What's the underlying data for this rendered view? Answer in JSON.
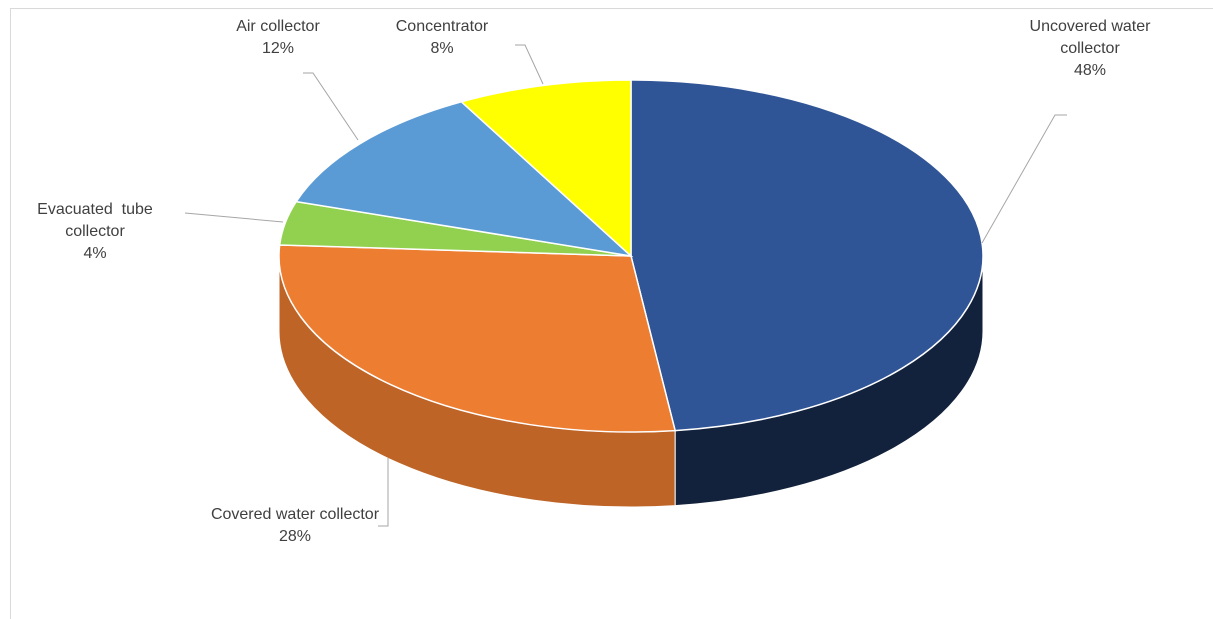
{
  "chart_data": {
    "type": "pie3d",
    "categories": [
      "Uncovered water collector",
      "Covered water collector",
      "Evacuated  tube collector",
      "Air collector",
      "Concentrator"
    ],
    "values": [
      48,
      28,
      4,
      12,
      8
    ],
    "value_labels": [
      "48%",
      "28%",
      "4%",
      "12%",
      "8%"
    ],
    "colors": [
      "#2f5597",
      "#ed7d31",
      "#92d050",
      "#5b9bd5",
      "#ffff00"
    ]
  }
}
